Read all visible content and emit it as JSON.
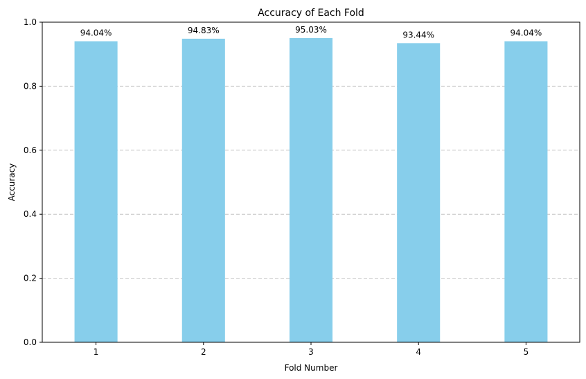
{
  "chart_data": {
    "type": "bar",
    "title": "Accuracy of Each Fold",
    "xlabel": "Fold Number",
    "ylabel": "Accuracy",
    "categories": [
      "1",
      "2",
      "3",
      "4",
      "5"
    ],
    "values": [
      0.9404,
      0.9483,
      0.9503,
      0.9344,
      0.9404
    ],
    "data_labels": [
      "94.04%",
      "94.83%",
      "95.03%",
      "93.44%",
      "94.04%"
    ],
    "ylim": [
      0,
      1.0
    ],
    "yticks": [
      0.0,
      0.2,
      0.4,
      0.6,
      0.8,
      1.0
    ],
    "ytick_labels": [
      "0.0",
      "0.2",
      "0.4",
      "0.6",
      "0.8",
      "1.0"
    ],
    "grid": "y-dashed",
    "bar_color": "#87CEEB",
    "grid_color": "#c4c4c4"
  }
}
